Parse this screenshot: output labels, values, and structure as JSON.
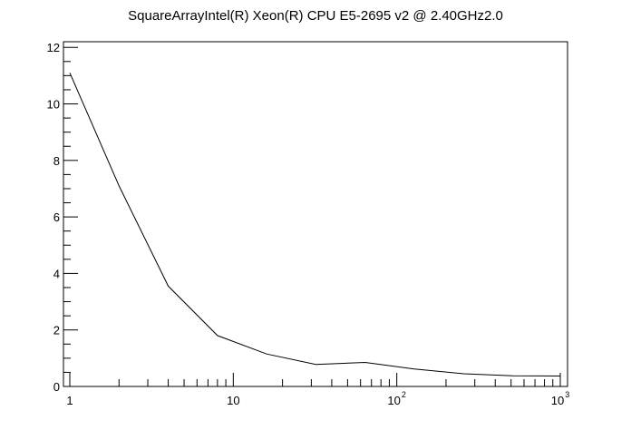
{
  "chart_data": {
    "type": "line",
    "title": "SquareArrayIntel(R) Xeon(R) CPU E5-2695 v2 @ 2.40GHz2.0",
    "xlabel": "",
    "ylabel": "",
    "xscale": "log",
    "xlim": [
      1,
      1000
    ],
    "ylim": [
      0,
      12.2
    ],
    "grid": false,
    "x_ticks": [
      {
        "base": "1",
        "exp": ""
      },
      {
        "base": "10",
        "exp": ""
      },
      {
        "base": "10",
        "exp": "2"
      },
      {
        "base": "10",
        "exp": "3"
      }
    ],
    "y_ticks": [
      "0",
      "2",
      "4",
      "6",
      "8",
      "10",
      "12"
    ],
    "series": [
      {
        "x": [
          1,
          2,
          4,
          8,
          16,
          32,
          64,
          128,
          256,
          512,
          1000
        ],
        "y": [
          11.1,
          7.1,
          3.55,
          1.8,
          1.15,
          0.78,
          0.85,
          0.62,
          0.45,
          0.38,
          0.37
        ]
      }
    ]
  }
}
